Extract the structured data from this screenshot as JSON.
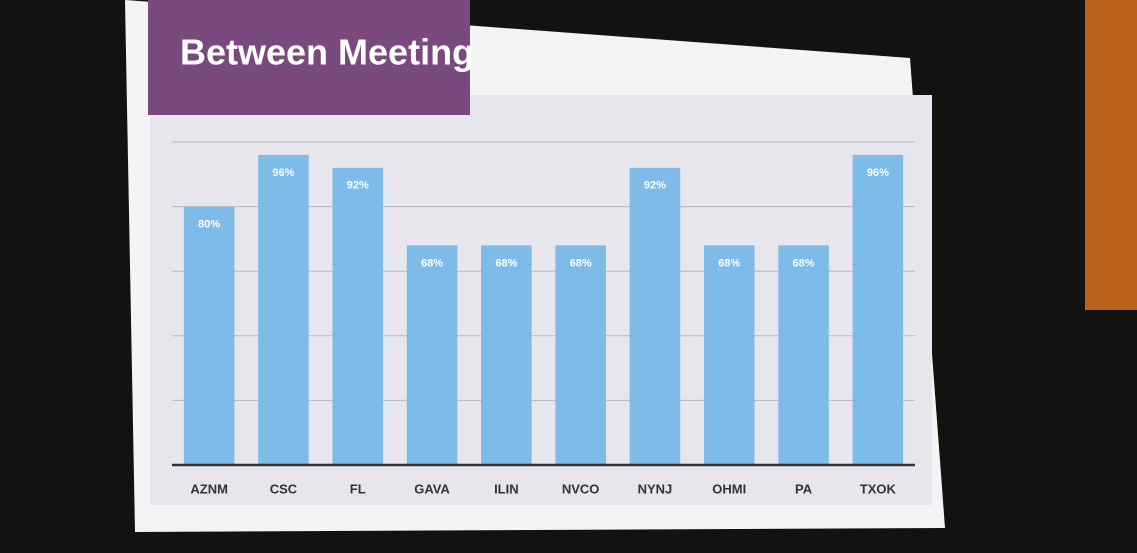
{
  "chart_data": {
    "type": "bar",
    "title": "Between Meeting",
    "categories": [
      "AZNM",
      "CSC",
      "FL",
      "GAVA",
      "ILIN",
      "NVCO",
      "NYNJ",
      "OHMI",
      "PA",
      "TXOK"
    ],
    "values": [
      80,
      96,
      92,
      68,
      68,
      68,
      92,
      68,
      68,
      96
    ],
    "value_labels": [
      "80%",
      "96%",
      "92%",
      "68%",
      "68%",
      "68%",
      "92%",
      "68%",
      "68%",
      "96%"
    ],
    "color": "#7dbbe8",
    "ylim": [
      0,
      100
    ],
    "yticks": [
      0,
      20,
      40,
      60,
      80,
      100
    ],
    "grid": true
  }
}
